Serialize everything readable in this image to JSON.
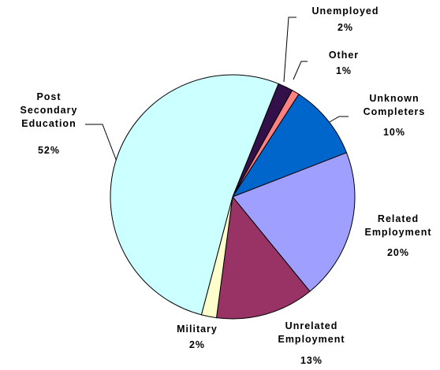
{
  "chart_data": {
    "type": "pie",
    "categories": [
      "Unemployed",
      "Other",
      "Unknown Completers",
      "Related Employment",
      "Unrelated Employment",
      "Military",
      "Post Secondary Education"
    ],
    "values": [
      2,
      1,
      10,
      20,
      13,
      2,
      52
    ],
    "value_labels": [
      "2%",
      "1%",
      "10%",
      "20%",
      "13%",
      "2%",
      "52%"
    ],
    "colors": [
      "#33104a",
      "#ff8080",
      "#0066cc",
      "#9f9fff",
      "#993366",
      "#ffffcc",
      "#ccffff"
    ]
  }
}
